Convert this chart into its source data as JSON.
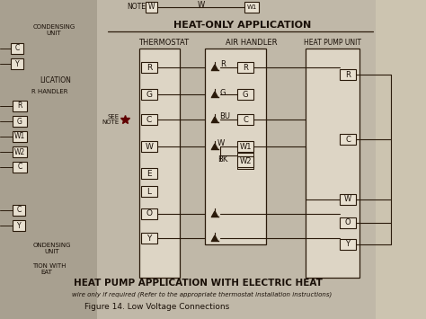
{
  "bg_color": "#b8b0a0",
  "left_bg": "#aaa090",
  "main_bg": "#c8c0b0",
  "right_bg": "#d0c8b0",
  "line_color": "#2a1a0a",
  "text_color": "#1a1008",
  "title": "HEAT-ONLY APPLICATION",
  "subtitle": "HEAT PUMP APPLICATION WITH ELECTRIC HEAT",
  "footer1": "wire only if required (Refer to the appropriate thermostat installation instructions)",
  "footer2": "Figure 14. Low Voltage Connections",
  "thermostat_label": "THERMOSTAT",
  "air_handler_label": "AIR HANDLER",
  "heat_pump_label": "HEAT PUMP UNIT",
  "note_top": "NOTE",
  "see_note": "SEE\nNOTE",
  "condensing_unit": "CONDENSING\nUNIT",
  "lication": "LICATION",
  "r_handler": "R HANDLER",
  "ation_with": "TION WITH",
  "eat": "EAT",
  "condensing_unit2": "ONDENSING\nUNIT"
}
